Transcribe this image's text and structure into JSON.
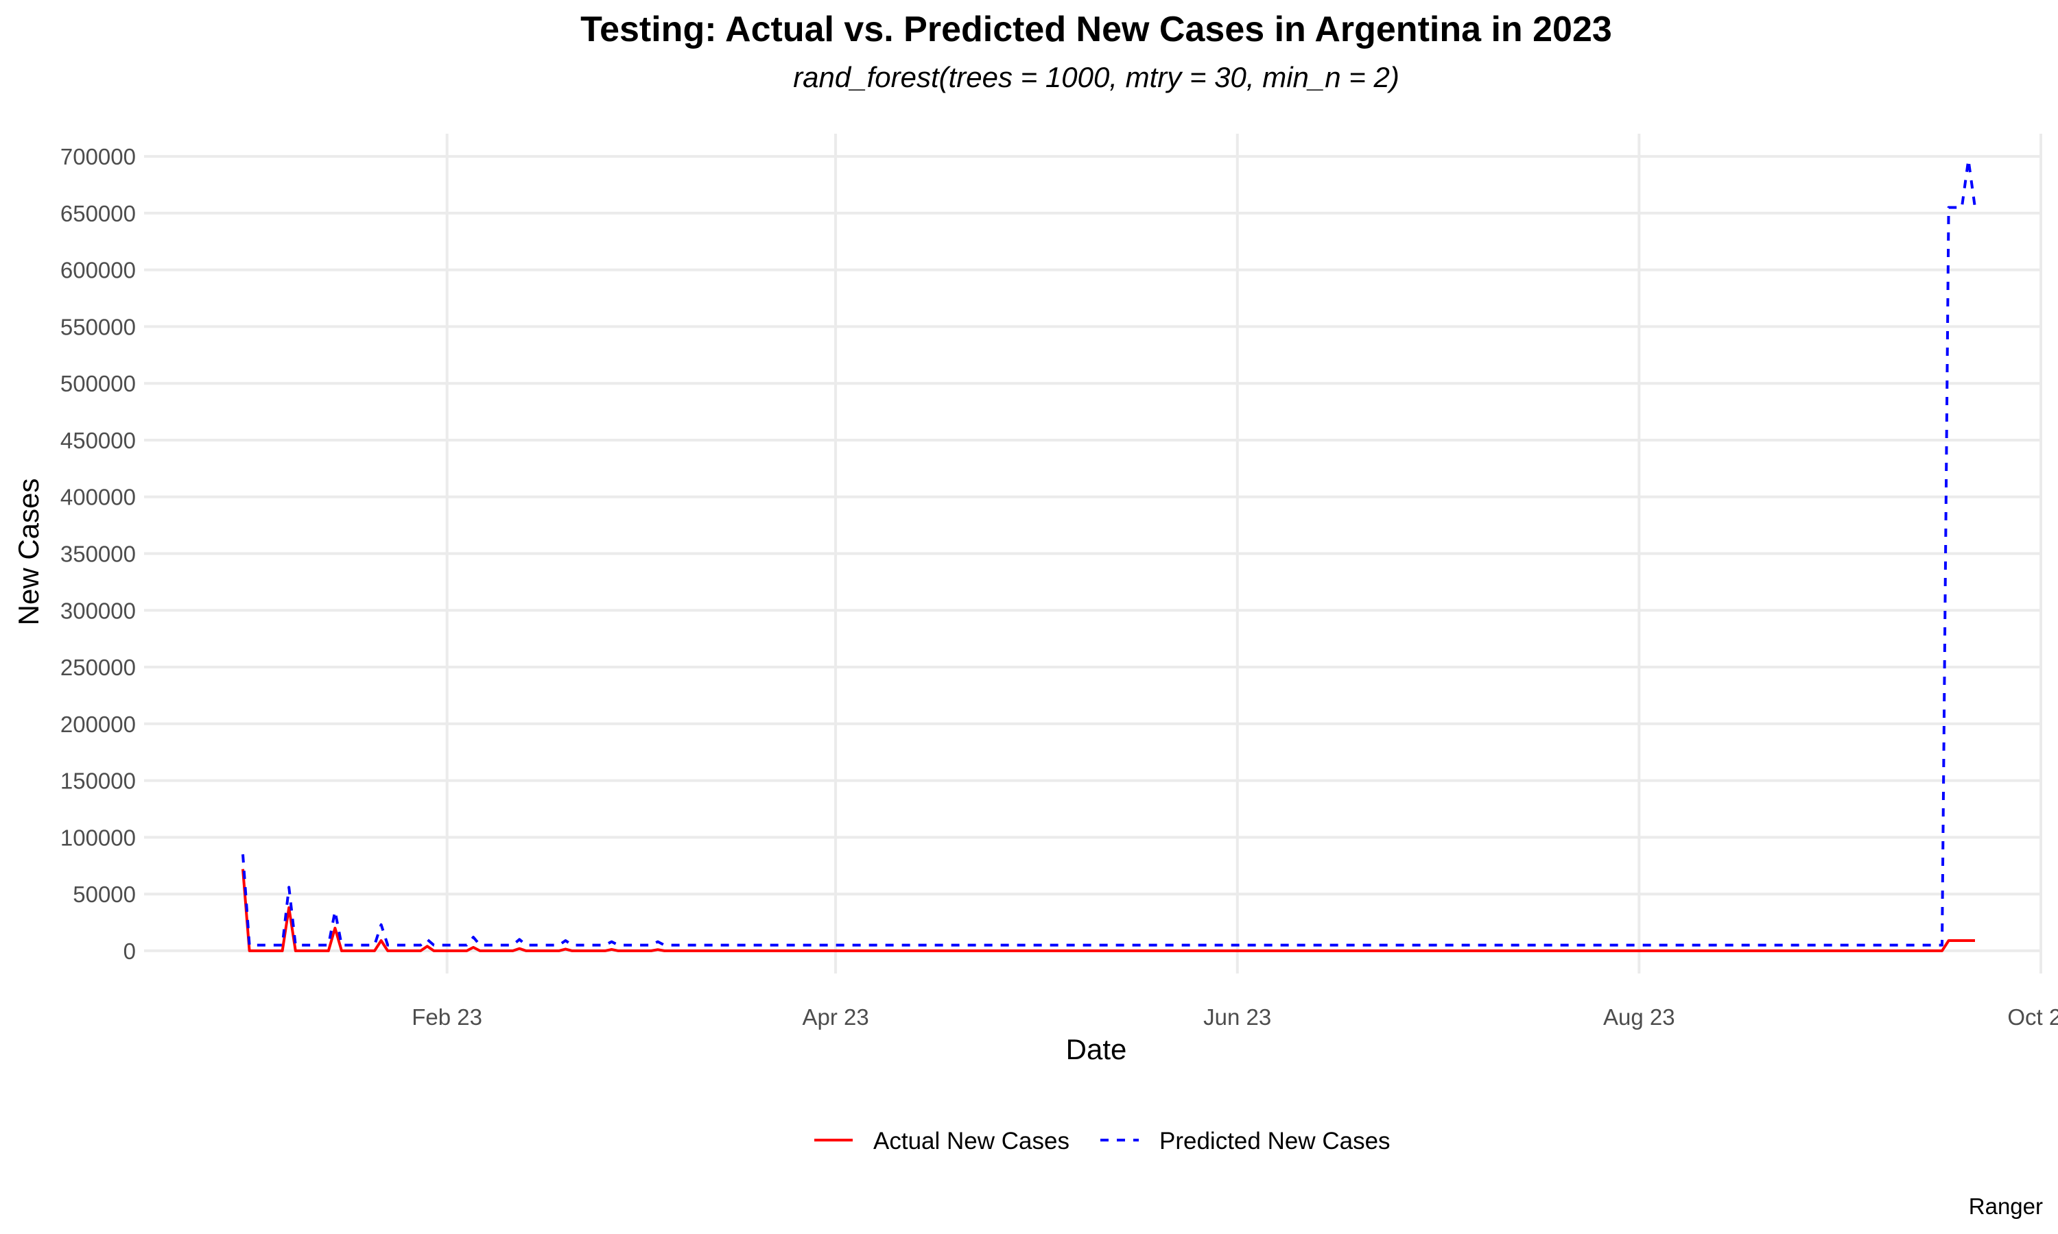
{
  "chart_data": {
    "type": "line",
    "title": "Testing: Actual vs. Predicted New Cases in Argentina in 2023",
    "subtitle": "rand_forest(trees = 1000, mtry = 30, min_n = 2)",
    "xlabel": "Date",
    "ylabel": "New Cases",
    "caption": "Ranger",
    "xlim": [
      "2022-12-17",
      "2023-10-01"
    ],
    "ylim": [
      -20000,
      720000
    ],
    "x_ticks": [
      {
        "date": "2023-02-01",
        "label": "Feb 23"
      },
      {
        "date": "2023-04-01",
        "label": "Apr 23"
      },
      {
        "date": "2023-06-01",
        "label": "Jun 23"
      },
      {
        "date": "2023-08-01",
        "label": "Aug 23"
      },
      {
        "date": "2023-10-01",
        "label": "Oct 23"
      }
    ],
    "y_ticks": [
      "0",
      "50000",
      "100000",
      "150000",
      "200000",
      "250000",
      "300000",
      "350000",
      "400000",
      "450000",
      "500000",
      "550000",
      "600000",
      "650000",
      "700000"
    ],
    "grid": true,
    "legend_position": "bottom",
    "series": [
      {
        "name": "Actual New Cases",
        "color": "#ff0000",
        "linetype": "solid",
        "points": [
          [
            "2023-01-01",
            72000
          ],
          [
            "2023-01-02",
            0
          ],
          [
            "2023-01-06",
            0
          ],
          [
            "2023-01-07",
            0
          ],
          [
            "2023-01-08",
            38000
          ],
          [
            "2023-01-09",
            0
          ],
          [
            "2023-01-13",
            0
          ],
          [
            "2023-01-14",
            0
          ],
          [
            "2023-01-15",
            20000
          ],
          [
            "2023-01-16",
            0
          ],
          [
            "2023-01-20",
            0
          ],
          [
            "2023-01-21",
            0
          ],
          [
            "2023-01-22",
            9000
          ],
          [
            "2023-01-23",
            0
          ],
          [
            "2023-01-28",
            0
          ],
          [
            "2023-01-29",
            4000
          ],
          [
            "2023-01-30",
            0
          ],
          [
            "2023-02-04",
            0
          ],
          [
            "2023-02-05",
            3000
          ],
          [
            "2023-02-06",
            0
          ],
          [
            "2023-02-11",
            0
          ],
          [
            "2023-02-12",
            2000
          ],
          [
            "2023-02-13",
            0
          ],
          [
            "2023-02-18",
            0
          ],
          [
            "2023-02-19",
            1500
          ],
          [
            "2023-02-20",
            0
          ],
          [
            "2023-02-25",
            0
          ],
          [
            "2023-02-26",
            1200
          ],
          [
            "2023-02-27",
            0
          ],
          [
            "2023-03-04",
            0
          ],
          [
            "2023-03-05",
            1000
          ],
          [
            "2023-03-06",
            0
          ],
          [
            "2023-09-16",
            0
          ],
          [
            "2023-09-17",
            9000
          ],
          [
            "2023-09-21",
            9000
          ]
        ]
      },
      {
        "name": "Predicted New Cases",
        "color": "#0000ff",
        "linetype": "dashed",
        "points": [
          [
            "2023-01-01",
            85000
          ],
          [
            "2023-01-02",
            5000
          ],
          [
            "2023-01-06",
            5000
          ],
          [
            "2023-01-07",
            5000
          ],
          [
            "2023-01-08",
            56000
          ],
          [
            "2023-01-09",
            5000
          ],
          [
            "2023-01-13",
            5000
          ],
          [
            "2023-01-14",
            5000
          ],
          [
            "2023-01-15",
            35000
          ],
          [
            "2023-01-16",
            5000
          ],
          [
            "2023-01-20",
            5000
          ],
          [
            "2023-01-21",
            5000
          ],
          [
            "2023-01-22",
            23000
          ],
          [
            "2023-01-23",
            5000
          ],
          [
            "2023-01-28",
            5000
          ],
          [
            "2023-01-29",
            10000
          ],
          [
            "2023-01-30",
            5000
          ],
          [
            "2023-02-04",
            5000
          ],
          [
            "2023-02-05",
            12000
          ],
          [
            "2023-02-06",
            5000
          ],
          [
            "2023-02-11",
            5000
          ],
          [
            "2023-02-12",
            10000
          ],
          [
            "2023-02-13",
            5000
          ],
          [
            "2023-02-18",
            5000
          ],
          [
            "2023-02-19",
            9000
          ],
          [
            "2023-02-20",
            5000
          ],
          [
            "2023-02-25",
            5000
          ],
          [
            "2023-02-26",
            8000
          ],
          [
            "2023-02-27",
            5000
          ],
          [
            "2023-03-04",
            5000
          ],
          [
            "2023-03-05",
            8000
          ],
          [
            "2023-03-06",
            5000
          ],
          [
            "2023-09-16",
            5000
          ],
          [
            "2023-09-17",
            655000
          ],
          [
            "2023-09-19",
            655000
          ],
          [
            "2023-09-20",
            697000
          ],
          [
            "2023-09-21",
            655000
          ]
        ]
      }
    ]
  }
}
